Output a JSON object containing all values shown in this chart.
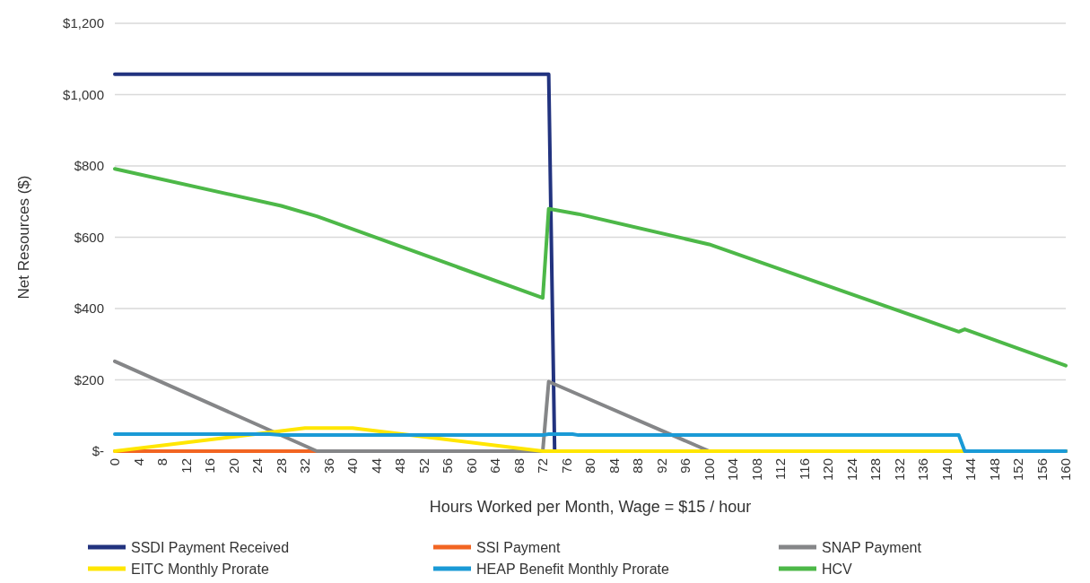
{
  "chart_data": {
    "type": "line",
    "xlabel": "Hours Worked per Month, Wage = $15 / hour",
    "ylabel": "Net Resources ($)",
    "xlim": [
      0,
      160
    ],
    "xticks": [
      0,
      4,
      8,
      12,
      16,
      20,
      24,
      28,
      32,
      36,
      40,
      44,
      48,
      52,
      56,
      60,
      64,
      68,
      72,
      76,
      80,
      84,
      88,
      92,
      96,
      100,
      104,
      108,
      112,
      116,
      120,
      124,
      128,
      132,
      136,
      140,
      144,
      148,
      152,
      156,
      160
    ],
    "ylim": [
      0,
      1200
    ],
    "yticks": [
      {
        "value": 0,
        "label": "$-"
      },
      {
        "value": 200,
        "label": "$200"
      },
      {
        "value": 400,
        "label": "$400"
      },
      {
        "value": 600,
        "label": "$600"
      },
      {
        "value": 800,
        "label": "$800"
      },
      {
        "value": 1000,
        "label": "$1,000"
      },
      {
        "value": 1200,
        "label": "$1,200"
      }
    ],
    "grid": "y",
    "legend": "bottom",
    "marker": "none",
    "line_style": "solid",
    "series": [
      {
        "name": "SSDI Payment Received",
        "color": "#22337f",
        "x": [
          0,
          73,
          74,
          160
        ],
        "values": [
          1057,
          1057,
          0,
          0
        ]
      },
      {
        "name": "SSI Payment",
        "color": "#f26522",
        "x": [
          0,
          34
        ],
        "values": [
          0,
          0
        ]
      },
      {
        "name": "SNAP Payment",
        "color": "#858688",
        "x": [
          0,
          34,
          72,
          73,
          100,
          160
        ],
        "values": [
          252,
          0,
          0,
          195,
          0,
          0
        ]
      },
      {
        "name": "EITC Monthly Prorate",
        "color": "#ffe600",
        "x": [
          0,
          32,
          40,
          72,
          160
        ],
        "values": [
          0,
          65,
          65,
          0,
          0
        ]
      },
      {
        "name": "HEAP Benefit Monthly Prorate",
        "color": "#1a9ad6",
        "x": [
          0,
          26,
          28,
          72,
          73,
          77,
          78,
          142,
          143,
          160
        ],
        "values": [
          48,
          48,
          45,
          45,
          48,
          48,
          45,
          45,
          0,
          0
        ]
      },
      {
        "name": "HCV",
        "color": "#4db848",
        "x": [
          0,
          28,
          34,
          72,
          73,
          78,
          100,
          142,
          143,
          160
        ],
        "values": [
          792,
          688,
          659,
          430,
          680,
          665,
          580,
          335,
          342,
          240
        ]
      }
    ]
  }
}
